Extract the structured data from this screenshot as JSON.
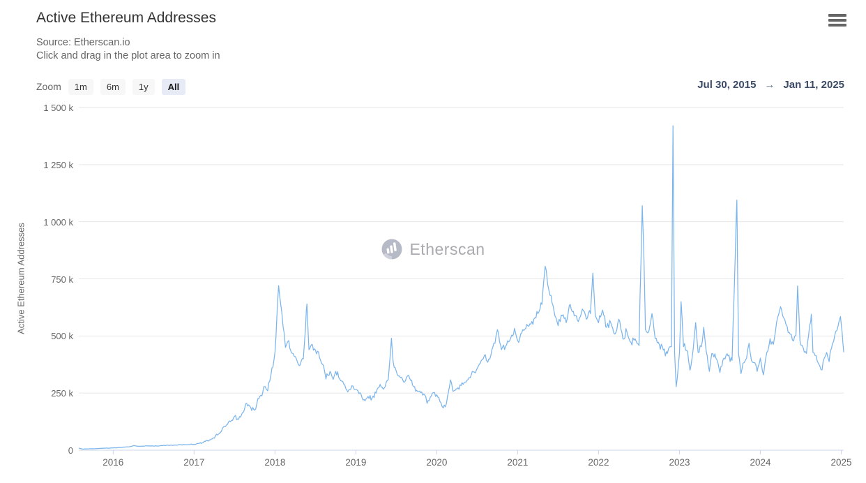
{
  "header": {
    "title": "Active Ethereum Addresses",
    "source_line": "Source: Etherscan.io",
    "hint_line": "Click and drag in the plot area to zoom in"
  },
  "range_selector": {
    "zoom_label": "Zoom",
    "buttons": [
      {
        "label": "1m",
        "selected": false
      },
      {
        "label": "6m",
        "selected": false
      },
      {
        "label": "1y",
        "selected": false
      },
      {
        "label": "All",
        "selected": true
      }
    ],
    "from_date": "Jul 30, 2015",
    "arrow": "→",
    "to_date": "Jan 11, 2025"
  },
  "watermark": {
    "text": "Etherscan",
    "icon": "etherscan-logo-icon"
  },
  "colors": {
    "line": "#7cb5ec",
    "grid": "#e6e6e6",
    "axis_line": "#ccd6eb",
    "title_text": "#333333",
    "muted_text": "#666666",
    "date_text": "#3b4a66",
    "button_bg": "#f7f7f7",
    "button_selected_bg": "#e6ebf5",
    "watermark_gray": "#9b9ba2"
  },
  "chart_data": {
    "type": "line",
    "title": "Active Ethereum Addresses",
    "subtitle": [
      "Source: Etherscan.io",
      "Click and drag in the plot area to zoom in"
    ],
    "xlabel": "",
    "ylabel": "Active Ethereum Addresses",
    "legend": "none",
    "grid": "horizontal",
    "unit": "thousands of active addresses per day",
    "ylim": [
      0,
      1500
    ],
    "yticks": {
      "values": [
        0,
        250,
        500,
        750,
        1000,
        1250,
        1500
      ],
      "labels": [
        "0",
        "250 k",
        "500 k",
        "750 k",
        "1 000 k",
        "1 250 k",
        "1 500 k"
      ]
    },
    "xticks": [
      2016,
      2017,
      2018,
      2019,
      2020,
      2021,
      2022,
      2023,
      2024,
      2025
    ],
    "x_range": {
      "start": 2015.575,
      "end": 2025.03,
      "start_label": "Jul 30, 2015",
      "end_label": "Jan 11, 2025"
    },
    "series_name": "Active Ethereum Addresses",
    "points_format": "[decimal_year, value_in_thousands]",
    "points": [
      [
        2015.58,
        9
      ],
      [
        2015.62,
        5
      ],
      [
        2015.7,
        6
      ],
      [
        2015.8,
        7
      ],
      [
        2015.9,
        9
      ],
      [
        2016.0,
        10
      ],
      [
        2016.1,
        12
      ],
      [
        2016.2,
        15
      ],
      [
        2016.25,
        20
      ],
      [
        2016.32,
        17
      ],
      [
        2016.4,
        19
      ],
      [
        2016.5,
        18
      ],
      [
        2016.6,
        20
      ],
      [
        2016.7,
        22
      ],
      [
        2016.8,
        23
      ],
      [
        2016.9,
        24
      ],
      [
        2017.0,
        26
      ],
      [
        2017.1,
        32
      ],
      [
        2017.2,
        45
      ],
      [
        2017.3,
        70
      ],
      [
        2017.35,
        95
      ],
      [
        2017.4,
        110
      ],
      [
        2017.45,
        125
      ],
      [
        2017.5,
        148
      ],
      [
        2017.55,
        135
      ],
      [
        2017.6,
        165
      ],
      [
        2017.65,
        205
      ],
      [
        2017.7,
        188
      ],
      [
        2017.75,
        175
      ],
      [
        2017.8,
        225
      ],
      [
        2017.85,
        255
      ],
      [
        2017.88,
        278
      ],
      [
        2017.91,
        260
      ],
      [
        2017.95,
        330
      ],
      [
        2018.0,
        430
      ],
      [
        2018.02,
        560
      ],
      [
        2018.045,
        720
      ],
      [
        2018.07,
        640
      ],
      [
        2018.1,
        540
      ],
      [
        2018.13,
        450
      ],
      [
        2018.17,
        480
      ],
      [
        2018.2,
        430
      ],
      [
        2018.25,
        410
      ],
      [
        2018.3,
        370
      ],
      [
        2018.35,
        400
      ],
      [
        2018.395,
        640
      ],
      [
        2018.42,
        440
      ],
      [
        2018.45,
        462
      ],
      [
        2018.5,
        438
      ],
      [
        2018.55,
        405
      ],
      [
        2018.6,
        370
      ],
      [
        2018.63,
        312
      ],
      [
        2018.68,
        345
      ],
      [
        2018.72,
        310
      ],
      [
        2018.75,
        345
      ],
      [
        2018.8,
        312
      ],
      [
        2018.85,
        290
      ],
      [
        2018.9,
        255
      ],
      [
        2018.95,
        282
      ],
      [
        2019.0,
        265
      ],
      [
        2019.05,
        252
      ],
      [
        2019.1,
        222
      ],
      [
        2019.15,
        235
      ],
      [
        2019.2,
        228
      ],
      [
        2019.25,
        250
      ],
      [
        2019.3,
        288
      ],
      [
        2019.35,
        272
      ],
      [
        2019.4,
        308
      ],
      [
        2019.44,
        490
      ],
      [
        2019.46,
        388
      ],
      [
        2019.5,
        345
      ],
      [
        2019.55,
        318
      ],
      [
        2019.6,
        298
      ],
      [
        2019.65,
        328
      ],
      [
        2019.7,
        285
      ],
      [
        2019.75,
        262
      ],
      [
        2019.8,
        252
      ],
      [
        2019.85,
        242
      ],
      [
        2019.88,
        205
      ],
      [
        2019.92,
        232
      ],
      [
        2019.96,
        252
      ],
      [
        2020.0,
        243
      ],
      [
        2020.04,
        213
      ],
      [
        2020.08,
        185
      ],
      [
        2020.12,
        205
      ],
      [
        2020.17,
        308
      ],
      [
        2020.2,
        258
      ],
      [
        2020.25,
        268
      ],
      [
        2020.3,
        283
      ],
      [
        2020.35,
        298
      ],
      [
        2020.4,
        318
      ],
      [
        2020.45,
        343
      ],
      [
        2020.5,
        358
      ],
      [
        2020.55,
        393
      ],
      [
        2020.6,
        418
      ],
      [
        2020.63,
        385
      ],
      [
        2020.68,
        438
      ],
      [
        2020.72,
        468
      ],
      [
        2020.75,
        528
      ],
      [
        2020.8,
        440
      ],
      [
        2020.85,
        455
      ],
      [
        2020.9,
        478
      ],
      [
        2020.96,
        533
      ],
      [
        2021.0,
        480
      ],
      [
        2021.05,
        513
      ],
      [
        2021.1,
        533
      ],
      [
        2021.15,
        553
      ],
      [
        2021.2,
        573
      ],
      [
        2021.25,
        598
      ],
      [
        2021.3,
        638
      ],
      [
        2021.34,
        805
      ],
      [
        2021.37,
        728
      ],
      [
        2021.4,
        678
      ],
      [
        2021.45,
        608
      ],
      [
        2021.5,
        545
      ],
      [
        2021.55,
        588
      ],
      [
        2021.6,
        558
      ],
      [
        2021.65,
        638
      ],
      [
        2021.7,
        588
      ],
      [
        2021.75,
        563
      ],
      [
        2021.8,
        618
      ],
      [
        2021.85,
        573
      ],
      [
        2021.9,
        598
      ],
      [
        2021.93,
        775
      ],
      [
        2021.96,
        588
      ],
      [
        2022.0,
        558
      ],
      [
        2022.05,
        613
      ],
      [
        2022.1,
        538
      ],
      [
        2022.15,
        558
      ],
      [
        2022.2,
        508
      ],
      [
        2022.25,
        573
      ],
      [
        2022.3,
        488
      ],
      [
        2022.35,
        518
      ],
      [
        2022.4,
        473
      ],
      [
        2022.45,
        488
      ],
      [
        2022.5,
        458
      ],
      [
        2022.54,
        1070
      ],
      [
        2022.56,
        855
      ],
      [
        2022.58,
        528
      ],
      [
        2022.62,
        518
      ],
      [
        2022.66,
        598
      ],
      [
        2022.7,
        488
      ],
      [
        2022.75,
        463
      ],
      [
        2022.8,
        438
      ],
      [
        2022.85,
        423
      ],
      [
        2022.9,
        453
      ],
      [
        2022.92,
        1420
      ],
      [
        2022.94,
        428
      ],
      [
        2022.96,
        278
      ],
      [
        2023.0,
        428
      ],
      [
        2023.02,
        650
      ],
      [
        2023.05,
        453
      ],
      [
        2023.1,
        433
      ],
      [
        2023.13,
        350
      ],
      [
        2023.17,
        443
      ],
      [
        2023.2,
        558
      ],
      [
        2023.23,
        428
      ],
      [
        2023.27,
        453
      ],
      [
        2023.3,
        538
      ],
      [
        2023.33,
        433
      ],
      [
        2023.37,
        345
      ],
      [
        2023.4,
        423
      ],
      [
        2023.45,
        403
      ],
      [
        2023.5,
        340
      ],
      [
        2023.55,
        403
      ],
      [
        2023.6,
        413
      ],
      [
        2023.65,
        393
      ],
      [
        2023.71,
        1095
      ],
      [
        2023.73,
        423
      ],
      [
        2023.76,
        335
      ],
      [
        2023.8,
        383
      ],
      [
        2023.83,
        403
      ],
      [
        2023.86,
        468
      ],
      [
        2023.89,
        393
      ],
      [
        2023.93,
        383
      ],
      [
        2023.96,
        345
      ],
      [
        2024.0,
        403
      ],
      [
        2024.04,
        330
      ],
      [
        2024.08,
        428
      ],
      [
        2024.12,
        488
      ],
      [
        2024.16,
        463
      ],
      [
        2024.2,
        558
      ],
      [
        2024.25,
        628
      ],
      [
        2024.29,
        578
      ],
      [
        2024.33,
        543
      ],
      [
        2024.37,
        508
      ],
      [
        2024.41,
        478
      ],
      [
        2024.44,
        503
      ],
      [
        2024.46,
        719
      ],
      [
        2024.49,
        478
      ],
      [
        2024.53,
        448
      ],
      [
        2024.57,
        423
      ],
      [
        2024.63,
        595
      ],
      [
        2024.65,
        428
      ],
      [
        2024.69,
        413
      ],
      [
        2024.72,
        378
      ],
      [
        2024.75,
        352
      ],
      [
        2024.79,
        403
      ],
      [
        2024.82,
        428
      ],
      [
        2024.85,
        388
      ],
      [
        2024.88,
        448
      ],
      [
        2024.92,
        503
      ],
      [
        2024.96,
        543
      ],
      [
        2024.99,
        585
      ],
      [
        2025.01,
        518
      ],
      [
        2025.02,
        472
      ],
      [
        2025.03,
        430
      ]
    ],
    "texture_noise": {
      "note": "cosmetic jitter reproducing daily volatility band around anchor points",
      "seed": 13,
      "samples_per_year": 78,
      "amplitude_anchors": [
        [
          2015.6,
          0.8
        ],
        [
          2016.5,
          1.5
        ],
        [
          2017.0,
          3
        ],
        [
          2017.5,
          12
        ],
        [
          2017.95,
          22
        ],
        [
          2018.15,
          26
        ],
        [
          2018.6,
          22
        ],
        [
          2019.1,
          15
        ],
        [
          2019.6,
          17
        ],
        [
          2020.1,
          13
        ],
        [
          2020.6,
          17
        ],
        [
          2021.1,
          26
        ],
        [
          2021.6,
          28
        ],
        [
          2022.1,
          28
        ],
        [
          2022.6,
          24
        ],
        [
          2023.1,
          24
        ],
        [
          2023.6,
          21
        ],
        [
          2024.1,
          25
        ],
        [
          2024.6,
          24
        ],
        [
          2025.0,
          18
        ]
      ]
    }
  }
}
